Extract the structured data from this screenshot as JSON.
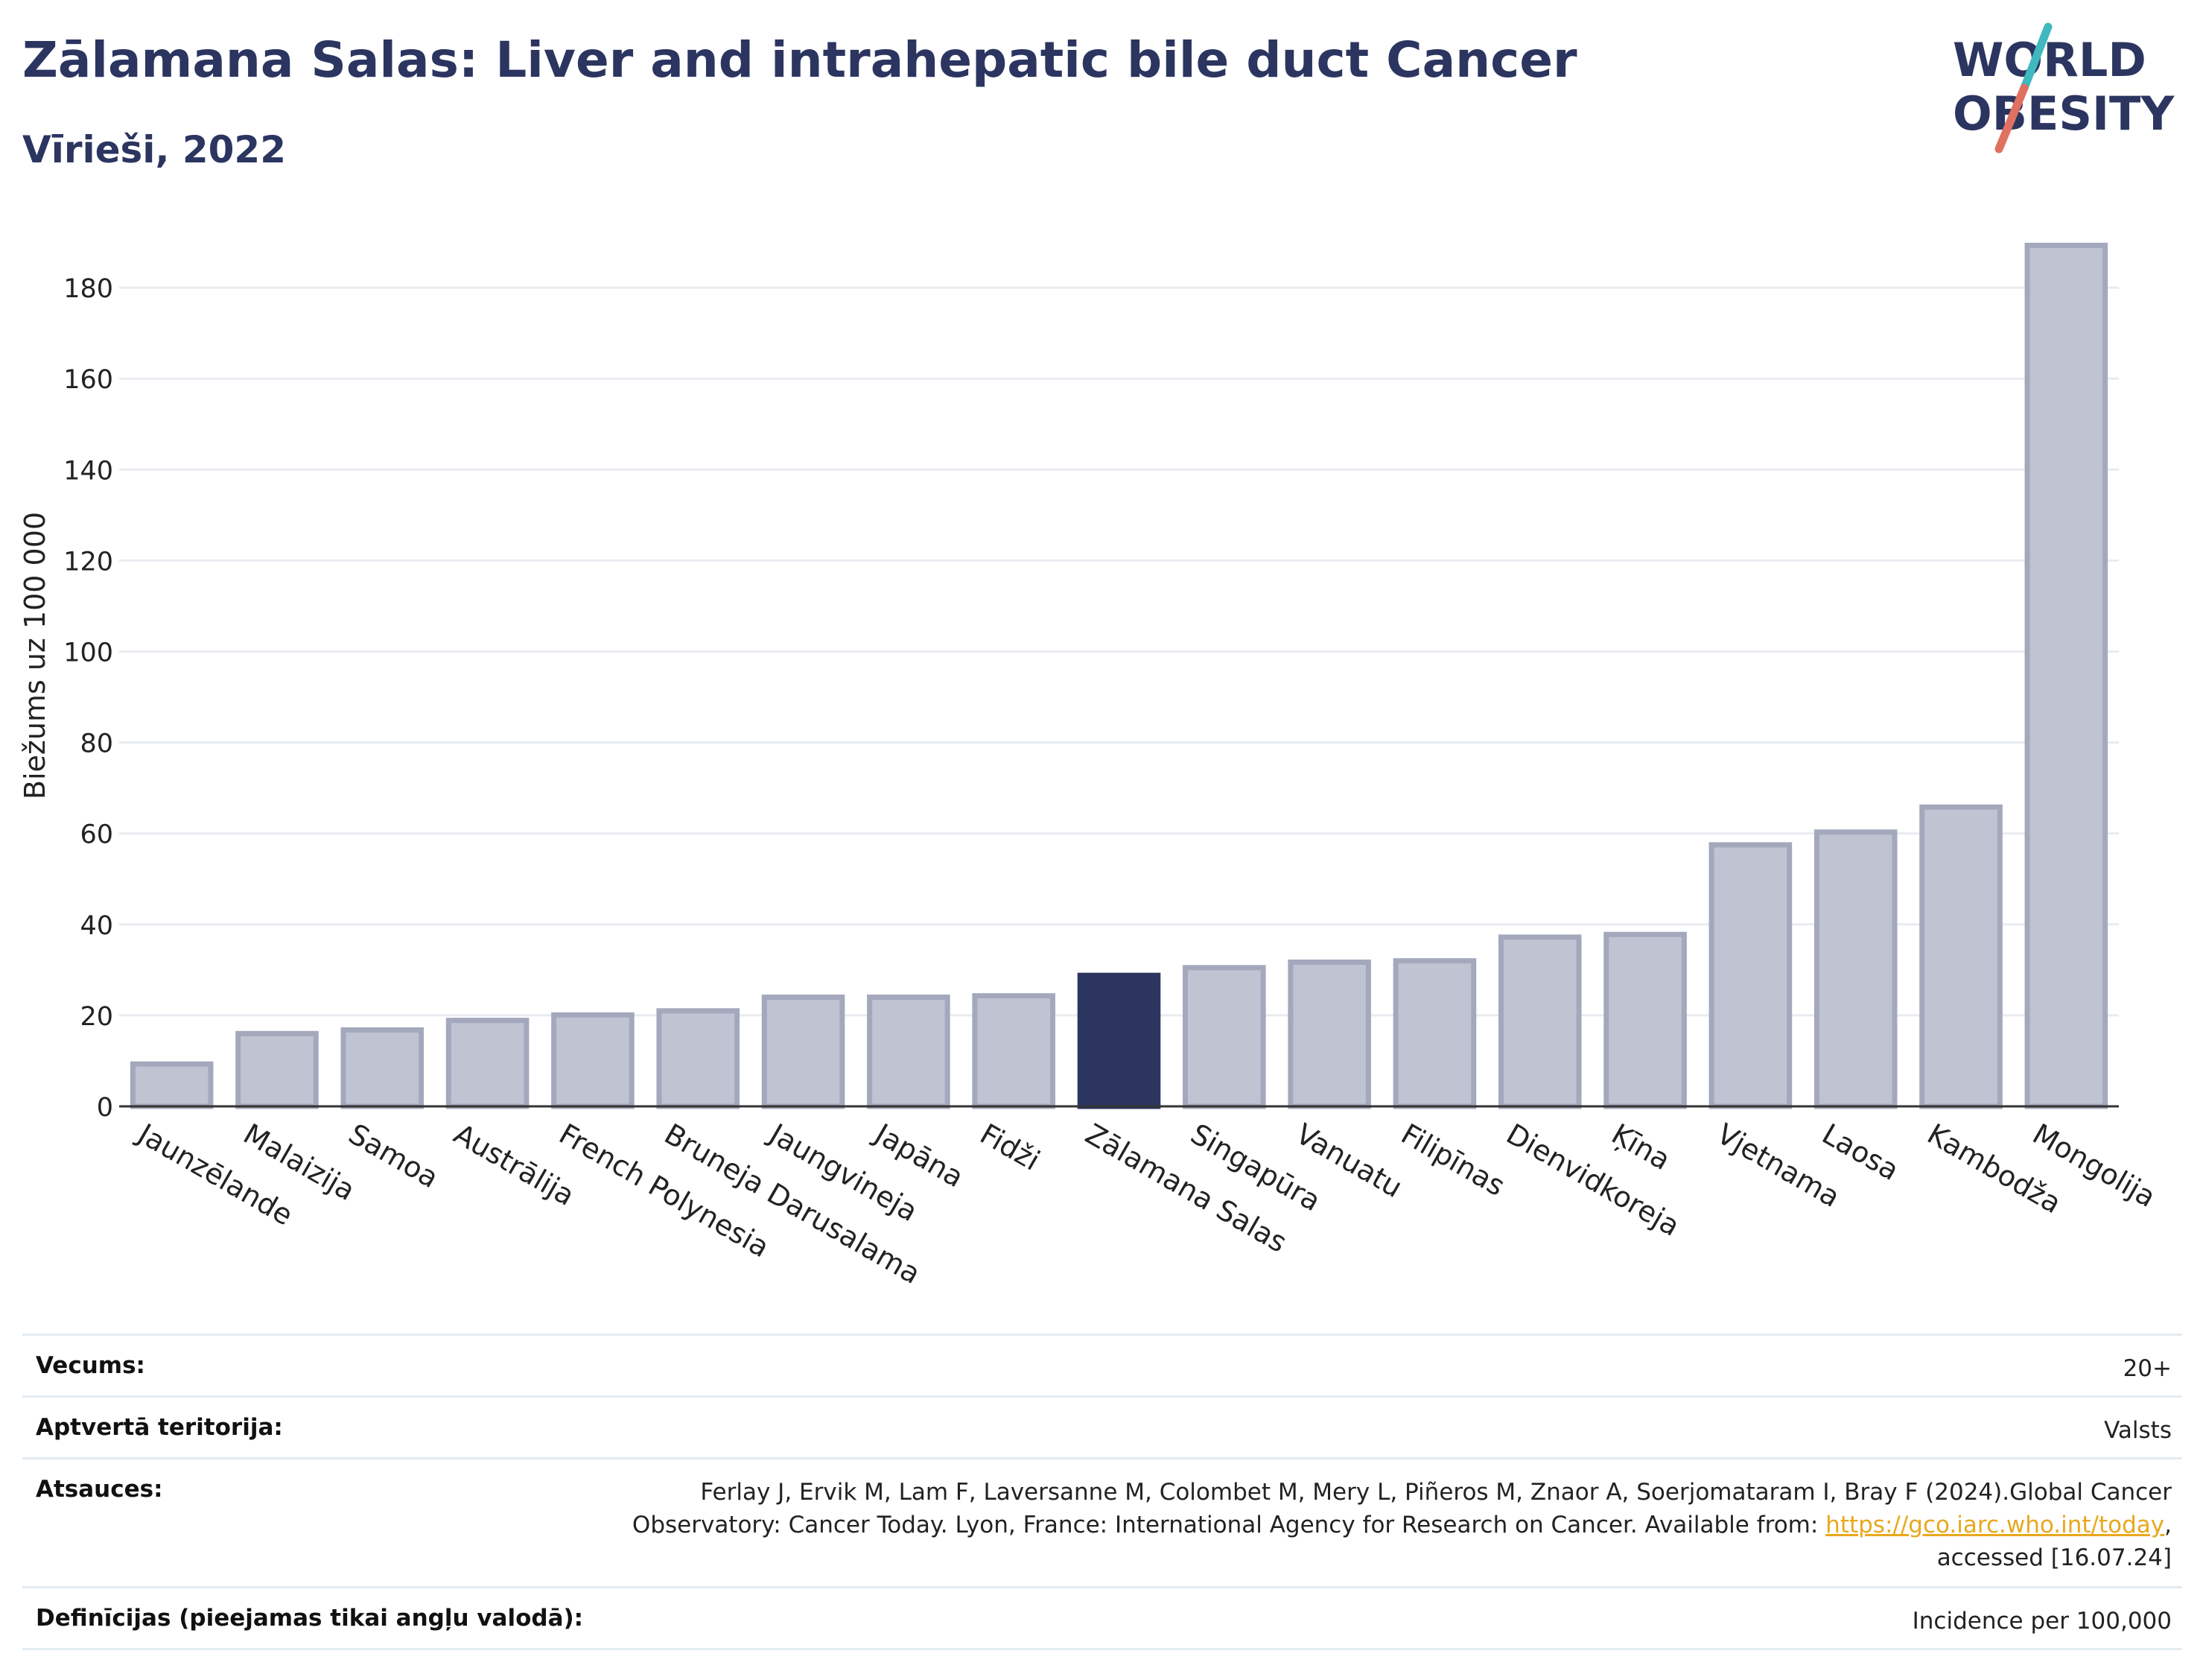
{
  "header": {
    "title": "Zālamana Salas: Liver and intrahepatic bile duct Cancer",
    "subtitle": "Vīrieši, 2022"
  },
  "logo": {
    "text_line1": "WORLD",
    "text_line2": "OBESITY",
    "colors": {
      "text": "#2b3560",
      "slash_top": "#3fb8c0",
      "slash_bottom": "#e07060"
    }
  },
  "colors": {
    "bar": "#c0c3d1",
    "bar_stroke": "#a3a8bd",
    "highlight": "#2b3560",
    "grid": "#e8ecf0",
    "axis": "#333333"
  },
  "chart_data": {
    "type": "bar",
    "title": "",
    "xlabel": "",
    "ylabel": "Biežums uz 100 000",
    "ylim": [
      0,
      195
    ],
    "yticks": [
      0,
      20,
      40,
      60,
      80,
      100,
      120,
      140,
      160,
      180
    ],
    "grid": true,
    "highlight_category": "Zālamana Salas",
    "categories": [
      "Jaunzēlande",
      "Malaizija",
      "Samoa",
      "Austrālija",
      "French Polynesia",
      "Bruneja Darusalama",
      "Jaungvineja",
      "Japāna",
      "Fidži",
      "Zālamana Salas",
      "Singapūra",
      "Vanuatu",
      "Filipīnas",
      "Dienvidkoreja",
      "Ķīna",
      "Vjetnama",
      "Laosa",
      "Kambodža",
      "Mongolija"
    ],
    "values": [
      9.3,
      16.0,
      16.8,
      18.9,
      20.1,
      21.0,
      24.0,
      24.0,
      24.3,
      28.8,
      30.5,
      31.7,
      32.0,
      37.2,
      37.8,
      57.5,
      60.3,
      65.8,
      189.3
    ]
  },
  "info": {
    "rows": [
      {
        "label": "Vecums:",
        "value_lines": [
          "20+"
        ]
      },
      {
        "label": "Aptvertā teritorija:",
        "value_lines": [
          "Valsts"
        ]
      },
      {
        "label": "Atsauces:",
        "ref_line1": "Ferlay J, Ervik M, Lam F, Laversanne M, Colombet M, Mery L, Piñeros M, Znaor A, Soerjomataram I, Bray F (2024).Global Cancer",
        "ref_line2_pre": "Observatory: Cancer Today. Lyon, France: International Agency for Research on Cancer. Available from: ",
        "ref_link": "https://gco.iarc.who.int/today",
        "ref_line2_post": ",",
        "ref_line3": "accessed [16.07.24]"
      },
      {
        "label": "Definīcijas (pieejamas tikai angļu valodā):",
        "value_lines": [
          "Incidence per 100,000"
        ]
      }
    ]
  }
}
